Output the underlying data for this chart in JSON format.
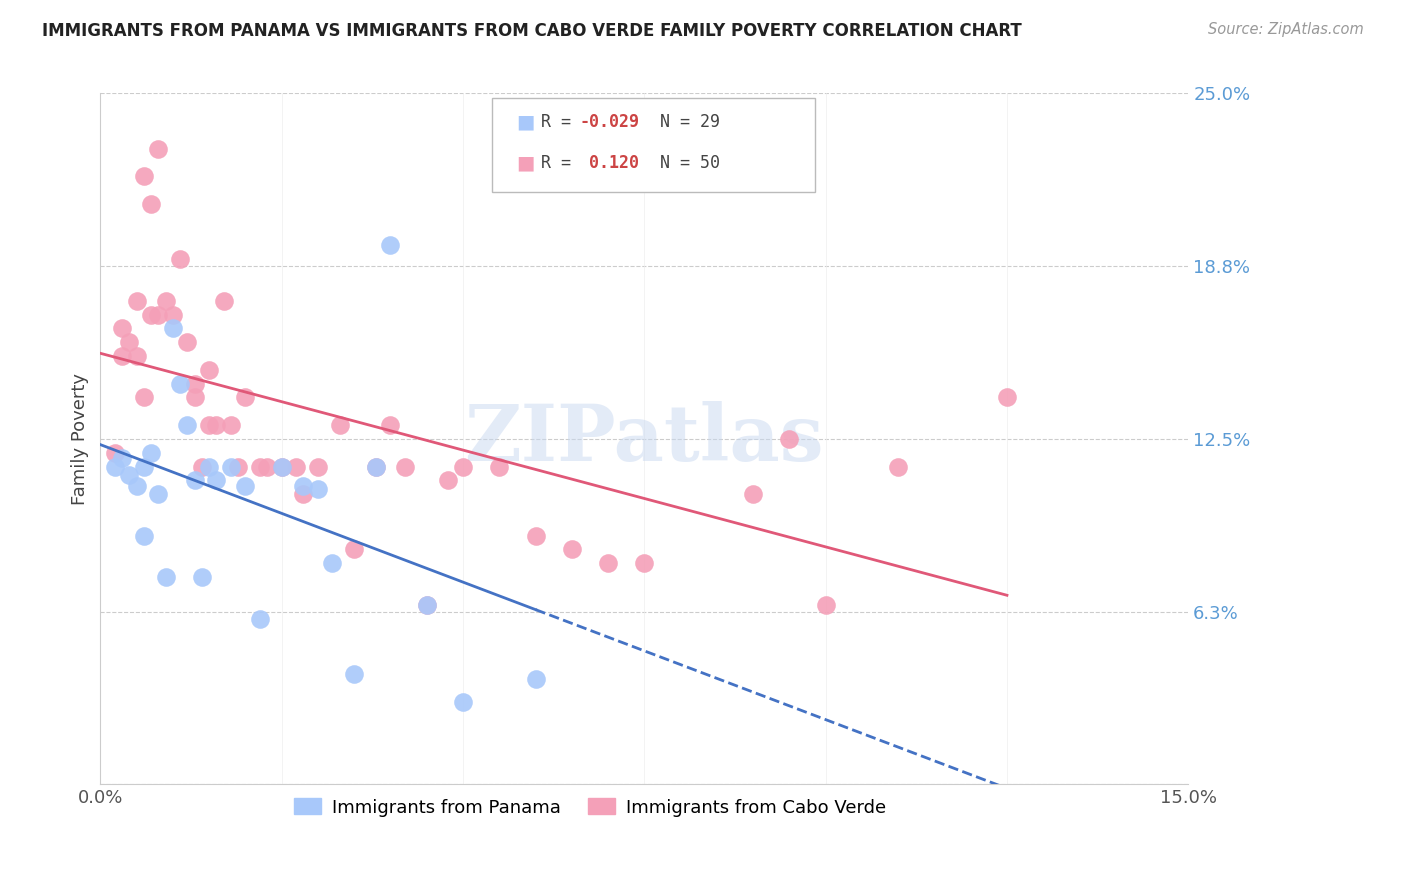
{
  "title": "IMMIGRANTS FROM PANAMA VS IMMIGRANTS FROM CABO VERDE FAMILY POVERTY CORRELATION CHART",
  "source": "Source: ZipAtlas.com",
  "ylabel": "Family Poverty",
  "xlim": [
    0.0,
    0.15
  ],
  "ylim": [
    0.0,
    0.25
  ],
  "yticks": [
    0.0,
    0.0625,
    0.125,
    0.1875,
    0.25
  ],
  "ytick_labels": [
    "",
    "6.3%",
    "12.5%",
    "18.8%",
    "25.0%"
  ],
  "xticks": [
    0.0,
    0.025,
    0.05,
    0.075,
    0.1,
    0.125,
    0.15
  ],
  "xtick_labels": [
    "0.0%",
    "",
    "",
    "",
    "",
    "",
    "15.0%"
  ],
  "color_panama": "#a8c8fa",
  "color_cabo": "#f4a0b8",
  "legend_R_panama": "-0.029",
  "legend_N_panama": "29",
  "legend_R_cabo": "0.120",
  "legend_N_cabo": "50",
  "watermark": "ZIPatlas",
  "panama_x": [
    0.002,
    0.003,
    0.004,
    0.005,
    0.006,
    0.006,
    0.007,
    0.008,
    0.009,
    0.01,
    0.011,
    0.012,
    0.013,
    0.014,
    0.015,
    0.016,
    0.018,
    0.02,
    0.022,
    0.025,
    0.028,
    0.03,
    0.032,
    0.035,
    0.038,
    0.04,
    0.045,
    0.05,
    0.06
  ],
  "panama_y": [
    0.115,
    0.118,
    0.112,
    0.108,
    0.115,
    0.09,
    0.12,
    0.105,
    0.075,
    0.165,
    0.145,
    0.13,
    0.11,
    0.075,
    0.115,
    0.11,
    0.115,
    0.108,
    0.06,
    0.115,
    0.108,
    0.107,
    0.08,
    0.04,
    0.115,
    0.195,
    0.065,
    0.03,
    0.038
  ],
  "cabo_x": [
    0.002,
    0.003,
    0.003,
    0.004,
    0.005,
    0.005,
    0.006,
    0.006,
    0.007,
    0.007,
    0.008,
    0.008,
    0.009,
    0.01,
    0.011,
    0.012,
    0.013,
    0.013,
    0.014,
    0.015,
    0.015,
    0.016,
    0.017,
    0.018,
    0.019,
    0.02,
    0.022,
    0.023,
    0.025,
    0.027,
    0.028,
    0.03,
    0.033,
    0.035,
    0.038,
    0.04,
    0.042,
    0.045,
    0.048,
    0.05,
    0.055,
    0.06,
    0.065,
    0.07,
    0.075,
    0.09,
    0.095,
    0.1,
    0.11,
    0.125
  ],
  "cabo_y": [
    0.12,
    0.155,
    0.165,
    0.16,
    0.155,
    0.175,
    0.14,
    0.22,
    0.17,
    0.21,
    0.17,
    0.23,
    0.175,
    0.17,
    0.19,
    0.16,
    0.145,
    0.14,
    0.115,
    0.15,
    0.13,
    0.13,
    0.175,
    0.13,
    0.115,
    0.14,
    0.115,
    0.115,
    0.115,
    0.115,
    0.105,
    0.115,
    0.13,
    0.085,
    0.115,
    0.13,
    0.115,
    0.065,
    0.11,
    0.115,
    0.115,
    0.09,
    0.085,
    0.08,
    0.08,
    0.105,
    0.125,
    0.065,
    0.115,
    0.14
  ]
}
